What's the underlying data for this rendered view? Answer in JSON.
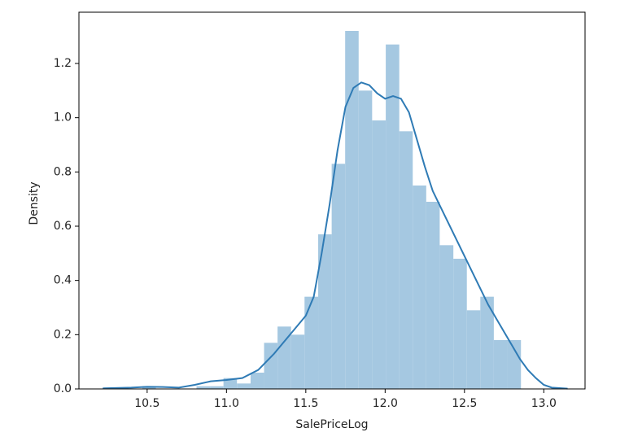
{
  "chart_data": {
    "type": "histogram",
    "xlabel": "SalePriceLog",
    "ylabel": "Density",
    "bins": [
      10.47,
      10.555,
      10.64,
      10.726,
      10.811,
      10.896,
      10.981,
      11.066,
      11.152,
      11.237,
      11.322,
      11.407,
      11.492,
      11.578,
      11.663,
      11.748,
      11.833,
      11.918,
      12.004,
      12.089,
      12.174,
      12.259,
      12.344,
      12.43,
      12.515,
      12.6,
      12.685,
      12.77,
      12.856
    ],
    "values": [
      0.01,
      0,
      0,
      0,
      0.01,
      0.01,
      0.04,
      0.02,
      0.06,
      0.17,
      0.23,
      0.2,
      0.34,
      0.57,
      0.83,
      1.32,
      1.1,
      0.99,
      1.27,
      0.95,
      0.75,
      0.69,
      0.53,
      0.48,
      0.29,
      0.34,
      0.18,
      0.18
    ],
    "color": "#a5c8e1",
    "kde": {
      "color": "#2f7bb5",
      "x": [
        10.22,
        10.4,
        10.5,
        10.6,
        10.7,
        10.8,
        10.9,
        11.0,
        11.1,
        11.2,
        11.3,
        11.4,
        11.5,
        11.55,
        11.6,
        11.65,
        11.7,
        11.75,
        11.8,
        11.85,
        11.9,
        11.95,
        12.0,
        12.05,
        12.1,
        12.15,
        12.2,
        12.25,
        12.3,
        12.35,
        12.4,
        12.45,
        12.5,
        12.55,
        12.6,
        12.65,
        12.7,
        12.75,
        12.8,
        12.85,
        12.9,
        12.95,
        13.0,
        13.05,
        13.15
      ],
      "values": [
        0.002,
        0.005,
        0.008,
        0.007,
        0.005,
        0.015,
        0.028,
        0.033,
        0.04,
        0.07,
        0.13,
        0.2,
        0.27,
        0.34,
        0.5,
        0.68,
        0.88,
        1.04,
        1.11,
        1.13,
        1.12,
        1.09,
        1.07,
        1.08,
        1.07,
        1.02,
        0.92,
        0.82,
        0.73,
        0.67,
        0.61,
        0.55,
        0.49,
        0.43,
        0.37,
        0.31,
        0.26,
        0.21,
        0.16,
        0.11,
        0.07,
        0.04,
        0.015,
        0.005,
        0.001
      ]
    },
    "xlim": [
      10.07,
      13.26
    ],
    "ylim": [
      0,
      1.389
    ],
    "xticks": [
      10.5,
      {
        "value": 11,
        "label": "11.0"
      },
      11.5,
      {
        "value": 12,
        "label": "12.0"
      },
      12.5,
      {
        "value": 13,
        "label": "13.0"
      }
    ],
    "yticks": [
      {
        "value": 0,
        "label": "0.0"
      },
      0.2,
      0.4,
      0.6,
      0.8,
      {
        "value": 1,
        "label": "1.0"
      },
      1.2
    ],
    "grid": false
  }
}
